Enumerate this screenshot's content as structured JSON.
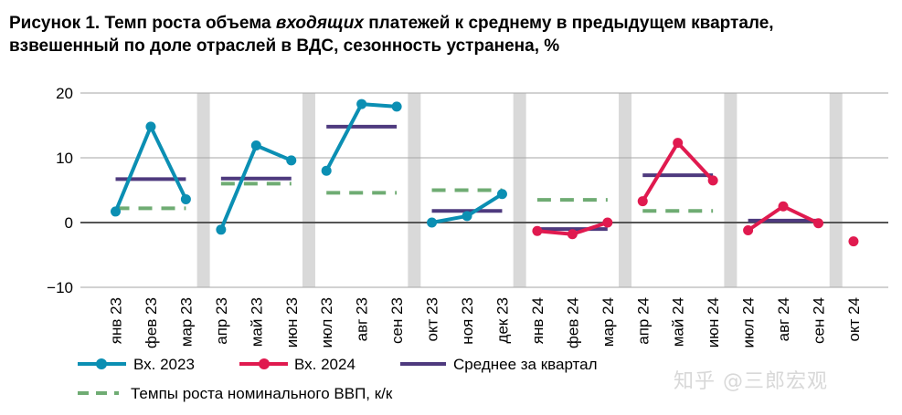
{
  "title": {
    "part1": "Рисунок 1. Темп роста объема ",
    "italic": "входящих",
    "part2": " платежей к среднему в предыдущем квартале, взвешенный по доле отраслей в ВДС, сезонность устранена, %"
  },
  "watermark": "知乎 @三郎宏观",
  "colors": {
    "vx2023": "#0b8fb3",
    "vx2024": "#e01a4f",
    "avg": "#4e3a7e",
    "gdp": "#6fac73",
    "sep": "#d9d9d9",
    "grid": "#a6a6a6"
  },
  "chart_data": {
    "type": "line",
    "categories": [
      "янв 23",
      "фев 23",
      "мар 23",
      "апр 23",
      "май 23",
      "июн 23",
      "июл 23",
      "авг 23",
      "сен 23",
      "окт 23",
      "ноя 23",
      "дек 23",
      "янв 24",
      "фев 24",
      "мар 24",
      "апр 24",
      "май 24",
      "июн 24",
      "июл 24",
      "авг 24",
      "сен 24",
      "окт 24"
    ],
    "ylim": [
      -10,
      20
    ],
    "yticks": [
      -10,
      0,
      10,
      20
    ],
    "grid": true,
    "legend_position": "bottom",
    "series": [
      {
        "name": "Вх. 2023",
        "type": "line",
        "segments": [
          {
            "x": [
              "янв 23",
              "фев 23",
              "мар 23"
            ],
            "y": [
              1.7,
              14.8,
              3.6
            ]
          },
          {
            "x": [
              "апр 23",
              "май 23",
              "июн 23"
            ],
            "y": [
              -1.1,
              11.9,
              9.6
            ]
          },
          {
            "x": [
              "июл 23",
              "авг 23",
              "сен 23"
            ],
            "y": [
              8.0,
              18.3,
              17.9
            ]
          },
          {
            "x": [
              "окт 23",
              "ноя 23",
              "дек 23"
            ],
            "y": [
              0.0,
              1.0,
              4.4
            ]
          }
        ]
      },
      {
        "name": "Вх. 2024",
        "type": "line",
        "segments": [
          {
            "x": [
              "янв 24",
              "фев 24",
              "мар 24"
            ],
            "y": [
              -1.3,
              -1.8,
              0.0
            ]
          },
          {
            "x": [
              "апр 24",
              "май 24",
              "июн 24"
            ],
            "y": [
              3.3,
              12.3,
              6.5
            ]
          },
          {
            "x": [
              "июл 24",
              "авг 24",
              "сен 24"
            ],
            "y": [
              -1.2,
              2.5,
              -0.1
            ]
          },
          {
            "x": [
              "окт 24"
            ],
            "y": [
              -2.9
            ]
          }
        ]
      },
      {
        "name": "Среднее за квартал",
        "type": "step",
        "quarters": [
          {
            "x": [
              "янв 23",
              "мар 23"
            ],
            "y": 6.7
          },
          {
            "x": [
              "апр 23",
              "июн 23"
            ],
            "y": 6.8
          },
          {
            "x": [
              "июл 23",
              "сен 23"
            ],
            "y": 14.8
          },
          {
            "x": [
              "окт 23",
              "дек 23"
            ],
            "y": 1.8
          },
          {
            "x": [
              "янв 24",
              "мар 24"
            ],
            "y": -1.0
          },
          {
            "x": [
              "апр 24",
              "июн 24"
            ],
            "y": 7.3
          },
          {
            "x": [
              "июл 24",
              "сен 24"
            ],
            "y": 0.3
          }
        ]
      },
      {
        "name": "Темпы роста номинального ВВП, к/к",
        "type": "dashed",
        "quarters": [
          {
            "x": [
              "янв 23",
              "мар 23"
            ],
            "y": 2.2
          },
          {
            "x": [
              "апр 23",
              "июн 23"
            ],
            "y": 6.0
          },
          {
            "x": [
              "июл 23",
              "сен 23"
            ],
            "y": 4.6
          },
          {
            "x": [
              "окт 23",
              "дек 23"
            ],
            "y": 5.0
          },
          {
            "x": [
              "янв 24",
              "мар 24"
            ],
            "y": 3.5
          },
          {
            "x": [
              "апр 24",
              "июн 24"
            ],
            "y": 1.8
          }
        ]
      }
    ]
  }
}
